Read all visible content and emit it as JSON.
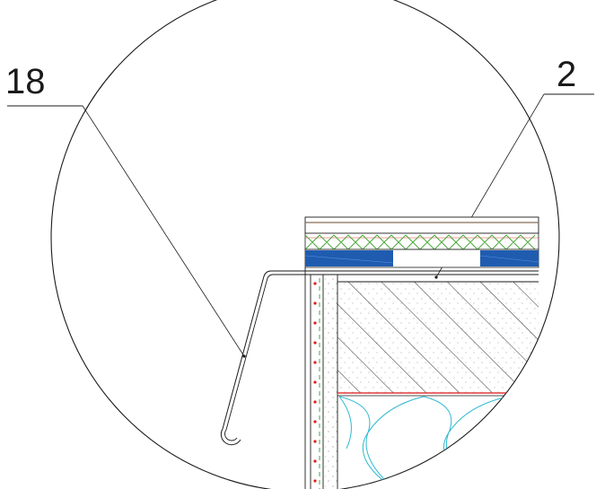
{
  "detail": {
    "callouts": [
      {
        "id": "callout-18",
        "number": "18"
      },
      {
        "id": "callout-2",
        "number": "2"
      }
    ],
    "colors": {
      "outline": "#1a1a1a",
      "membrane_blue": "#1f5cb0",
      "top_layer_brown": "#8b6a55",
      "green_cross": "#4aa83a",
      "red_line": "#e23a3a",
      "insulation_cyan": "#2fb8d0",
      "dashed_green": "#3fa84a",
      "red_dots": "#e21e1e"
    }
  }
}
